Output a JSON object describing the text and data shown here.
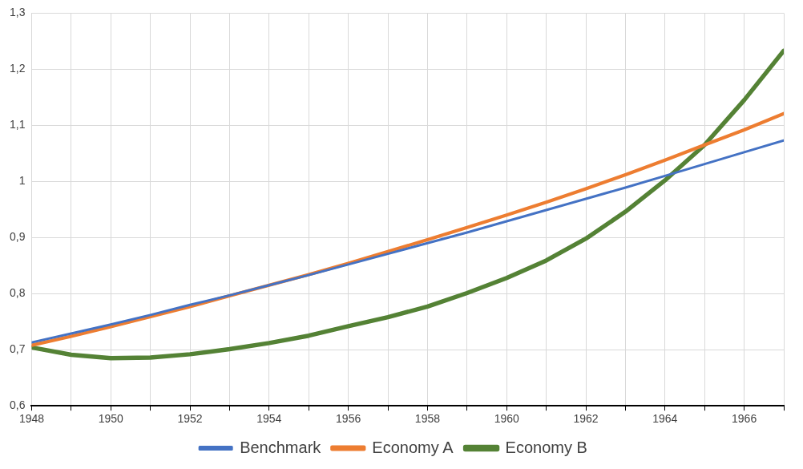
{
  "chart_data": {
    "type": "line",
    "x": [
      1948,
      1949,
      1950,
      1951,
      1952,
      1953,
      1954,
      1955,
      1956,
      1957,
      1958,
      1959,
      1960,
      1961,
      1962,
      1963,
      1964,
      1965,
      1966,
      1967
    ],
    "series": [
      {
        "name": "Benchmark",
        "color": "#4472c4",
        "values": [
          0.713,
          0.729,
          0.745,
          0.762,
          0.78,
          0.797,
          0.815,
          0.833,
          0.852,
          0.871,
          0.89,
          0.909,
          0.929,
          0.949,
          0.969,
          0.989,
          1.01,
          1.031,
          1.052,
          1.073
        ]
      },
      {
        "name": "Economy A",
        "color": "#ed7d31",
        "values": [
          0.708,
          0.724,
          0.741,
          0.759,
          0.777,
          0.796,
          0.815,
          0.834,
          0.854,
          0.875,
          0.896,
          0.918,
          0.94,
          0.963,
          0.987,
          1.012,
          1.038,
          1.065,
          1.092,
          1.121
        ]
      },
      {
        "name": "Economy B",
        "color": "#548235",
        "values": [
          0.704,
          0.691,
          0.685,
          0.686,
          0.692,
          0.701,
          0.712,
          0.725,
          0.742,
          0.758,
          0.777,
          0.801,
          0.828,
          0.859,
          0.898,
          0.946,
          1.002,
          1.065,
          1.145,
          1.233
        ]
      }
    ],
    "xlim": [
      1948,
      1967
    ],
    "xticks": [
      1948,
      {
        "value": 1949,
        "label": null
      },
      1950,
      {
        "value": 1951,
        "label": null
      },
      1952,
      {
        "value": 1953,
        "label": null
      },
      1954,
      {
        "value": 1955,
        "label": null
      },
      1956,
      {
        "value": 1957,
        "label": null
      },
      1958,
      {
        "value": 1959,
        "label": null
      },
      1960,
      {
        "value": 1961,
        "label": null
      },
      1962,
      {
        "value": 1963,
        "label": null
      },
      1964,
      {
        "value": 1965,
        "label": null
      },
      1966,
      {
        "value": 1967,
        "label": null
      }
    ],
    "ylim": [
      0.6,
      1.3
    ],
    "yticks": [
      {
        "value": 0.6,
        "label": "0,6"
      },
      {
        "value": 0.7,
        "label": "0,7"
      },
      {
        "value": 0.8,
        "label": "0,8"
      },
      {
        "value": 0.9,
        "label": "0,9"
      },
      1,
      {
        "value": 1.1,
        "label": "1,1"
      },
      {
        "value": 1.2,
        "label": "1,2"
      },
      {
        "value": 1.3,
        "label": "1,3"
      }
    ],
    "grid": true,
    "legend": "bottom",
    "marker": "none",
    "line_style": "solid"
  }
}
